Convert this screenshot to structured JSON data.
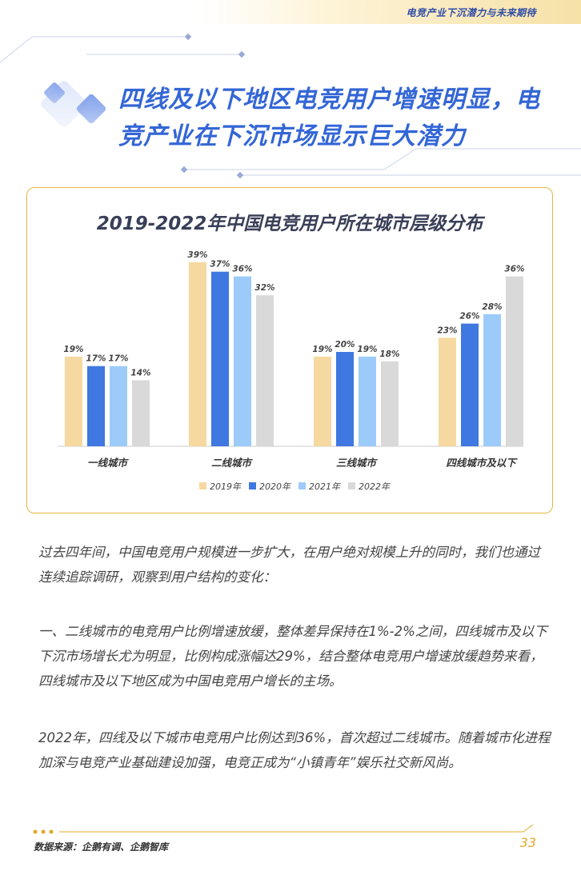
{
  "header": {
    "text": "电竞产业下沉潜力与未来期待"
  },
  "title": {
    "line1": "四线及以下地区电竞用户增速明显，电",
    "line2": "竞产业在下沉市场显示巨大潜力"
  },
  "chart_data": {
    "type": "bar",
    "title": "2019-2022年中国电竞用户所在城市层级分布",
    "categories": [
      "一线城市",
      "二线城市",
      "三线城市",
      "四线城市及以下"
    ],
    "series": [
      {
        "name": "2019年",
        "color": "#f5d9a0",
        "values": [
          19,
          39,
          19,
          23
        ]
      },
      {
        "name": "2020年",
        "color": "#3f78e0",
        "values": [
          17,
          37,
          20,
          26
        ]
      },
      {
        "name": "2021年",
        "color": "#9ccbfa",
        "values": [
          17,
          36,
          19,
          28
        ]
      },
      {
        "name": "2022年",
        "color": "#d9d9d9",
        "values": [
          14,
          32,
          18,
          36
        ]
      }
    ],
    "value_suffix": "%",
    "ylim": [
      0,
      40
    ],
    "grid": false,
    "legend": "bottom"
  },
  "body": {
    "p1": "过去四年间，中国电竞用户规模进一步扩大，在用户绝对规模上升的同时，我们也通过连续追踪调研，观察到用户结构的变化：",
    "p2": "一、二线城市的电竞用户比例增速放缓，整体差异保持在1%-2%之间，四线城市及以下下沉市场增长尤为明显，比例构成涨幅达29%，结合整体电竞用户增速放缓趋势来看，四线城市及以下地区成为中国电竞用户增长的主场。",
    "p3": "2022年，四线及以下城市电竞用户比例达到36%，首次超过二线城市。随着城市化进程加深与电竞产业基础建设加强，电竞正成为“小镇青年”娱乐社交新风尚。"
  },
  "footer": {
    "source": "数据来源：企鹅有调、企鹅智库",
    "page": "33"
  }
}
